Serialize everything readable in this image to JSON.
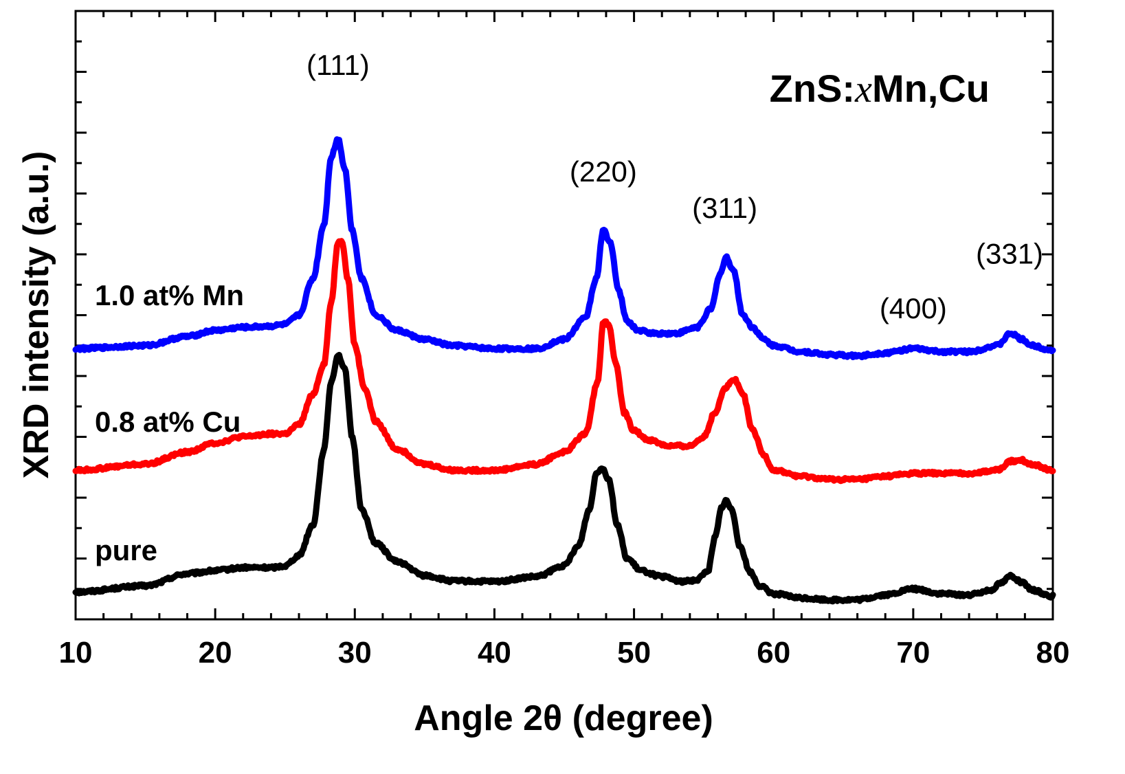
{
  "chart_data": {
    "type": "line",
    "title": {
      "prefix": "ZnS:",
      "italic": "x",
      "suffix": "Mn,Cu"
    },
    "xlabel": "Angle 2θ (degree)",
    "ylabel": "XRD intensity (a.u.)",
    "xlim": [
      10,
      80
    ],
    "ylim": [
      0,
      10
    ],
    "xticks": [
      10,
      20,
      30,
      40,
      50,
      60,
      70,
      80
    ],
    "grid": false,
    "series": [
      {
        "name": "pure",
        "color": "#000000",
        "x": [
          10,
          15,
          18,
          20,
          22,
          24,
          25,
          26,
          27,
          27.8,
          28.3,
          28.8,
          29.3,
          29.8,
          30.5,
          31.5,
          33,
          35,
          37,
          40,
          43,
          45,
          46,
          46.8,
          47.3,
          47.7,
          48.2,
          48.8,
          49.5,
          50.5,
          52,
          53.5,
          54.5,
          55.3,
          55.8,
          56.3,
          56.6,
          57,
          57.6,
          58.3,
          59,
          60,
          62,
          64,
          66,
          68,
          70,
          72,
          74,
          75.5,
          76.3,
          77,
          77.8,
          78.5,
          80
        ],
        "values": [
          0.45,
          0.55,
          0.75,
          0.8,
          0.85,
          0.85,
          0.88,
          1.05,
          1.55,
          2.8,
          3.9,
          4.35,
          4.1,
          3.0,
          1.8,
          1.25,
          0.95,
          0.72,
          0.63,
          0.62,
          0.7,
          0.88,
          1.2,
          1.8,
          2.4,
          2.5,
          2.3,
          1.55,
          1.0,
          0.8,
          0.7,
          0.62,
          0.65,
          0.8,
          1.35,
          1.85,
          1.95,
          1.8,
          1.2,
          0.78,
          0.55,
          0.42,
          0.35,
          0.32,
          0.32,
          0.4,
          0.5,
          0.42,
          0.4,
          0.48,
          0.6,
          0.72,
          0.6,
          0.48,
          0.38
        ]
      },
      {
        "name": "0.8 at% Cu",
        "color": "#ff0000",
        "x": [
          10,
          15,
          18,
          20,
          22,
          24,
          25,
          26,
          27,
          27.8,
          28.3,
          28.8,
          29.1,
          29.5,
          30,
          30.7,
          31.5,
          33,
          35,
          37,
          40,
          43,
          45,
          46.5,
          47.4,
          47.8,
          48.2,
          48.7,
          49.3,
          50,
          51,
          52.5,
          54,
          55,
          55.8,
          56.5,
          57.2,
          57.8,
          58.5,
          59.3,
          60,
          62,
          64,
          66,
          68,
          70,
          72,
          74,
          76,
          77,
          77.7,
          78.5,
          80
        ],
        "values": [
          2.45,
          2.55,
          2.75,
          2.9,
          3.0,
          3.05,
          3.05,
          3.2,
          3.7,
          4.2,
          5.2,
          6.2,
          6.2,
          5.6,
          4.5,
          3.8,
          3.25,
          2.8,
          2.55,
          2.45,
          2.45,
          2.55,
          2.75,
          3.05,
          3.9,
          4.9,
          4.85,
          4.2,
          3.4,
          3.1,
          2.95,
          2.85,
          2.85,
          3.0,
          3.4,
          3.8,
          3.95,
          3.7,
          3.1,
          2.7,
          2.45,
          2.35,
          2.3,
          2.3,
          2.35,
          2.4,
          2.4,
          2.4,
          2.45,
          2.6,
          2.62,
          2.55,
          2.45
        ]
      },
      {
        "name": "1.0 at% Mn",
        "color": "#0000ff",
        "x": [
          10,
          15,
          18,
          20,
          22,
          24,
          25,
          26,
          27,
          27.8,
          28.3,
          28.8,
          29.3,
          29.8,
          30.5,
          31.5,
          33,
          35,
          37,
          40,
          43,
          45,
          46.5,
          47.3,
          47.8,
          48.3,
          48.9,
          49.5,
          50.3,
          51.5,
          53,
          54.5,
          55.5,
          56.2,
          56.6,
          57.1,
          57.8,
          58.5,
          59.3,
          60,
          62,
          64,
          66,
          68,
          70,
          72,
          74,
          76,
          77,
          77.8,
          78.5,
          80
        ],
        "values": [
          4.45,
          4.5,
          4.65,
          4.75,
          4.8,
          4.82,
          4.85,
          5.0,
          5.6,
          6.5,
          7.6,
          7.9,
          7.4,
          6.4,
          5.6,
          5.0,
          4.75,
          4.6,
          4.5,
          4.45,
          4.45,
          4.6,
          4.95,
          5.6,
          6.4,
          6.2,
          5.4,
          4.9,
          4.75,
          4.7,
          4.7,
          4.8,
          5.1,
          5.7,
          5.95,
          5.75,
          5.0,
          4.8,
          4.6,
          4.5,
          4.4,
          4.35,
          4.33,
          4.38,
          4.45,
          4.4,
          4.4,
          4.5,
          4.7,
          4.6,
          4.5,
          4.42
        ]
      }
    ],
    "peak_labels": [
      {
        "text": "(111)",
        "x": 28.8,
        "y": 8.95
      },
      {
        "text": "(220)",
        "x": 47.8,
        "y": 7.2
      },
      {
        "text": "(311)",
        "x": 56.5,
        "y": 6.6
      },
      {
        "text": "(400)",
        "x": 70.0,
        "y": 4.95
      },
      {
        "text": "(331)",
        "x": 76.9,
        "y": 5.85
      }
    ]
  }
}
